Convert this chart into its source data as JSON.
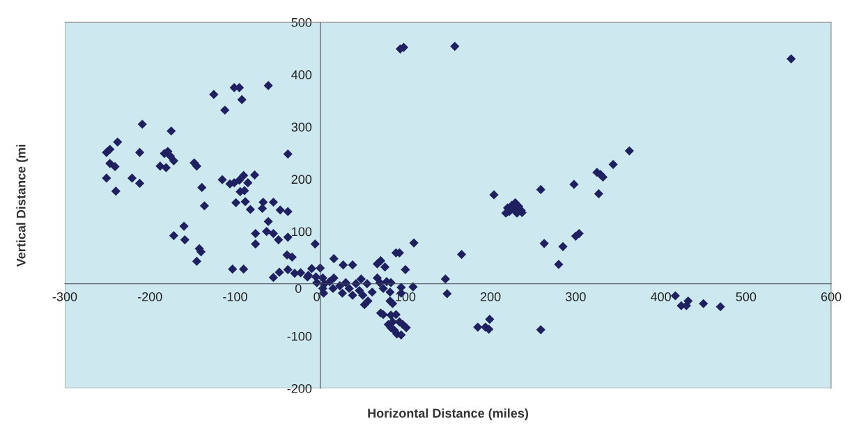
{
  "chart_data": {
    "type": "scatter",
    "xlabel": "Horizontal Distance (miles)",
    "ylabel": "Vertical Distance (mi",
    "xlim": [
      -300,
      600
    ],
    "ylim": [
      -200,
      500
    ],
    "xticks": [
      -300,
      -200,
      -100,
      0,
      100,
      200,
      300,
      400,
      500,
      600
    ],
    "yticks": [
      -200,
      -100,
      0,
      100,
      200,
      300,
      400,
      500
    ],
    "grid": false,
    "marker": "diamond",
    "series": [
      {
        "color": "#1f2060",
        "x": [
          -251,
          -251,
          -247,
          -238,
          -247,
          -241,
          -240,
          -209,
          -212,
          -221,
          -212,
          -175,
          -183,
          -179,
          -176,
          -172,
          -188,
          -181,
          -148,
          -145,
          -139,
          -136,
          -172,
          -160,
          -159,
          -142,
          -140,
          -145,
          -115,
          -106,
          -101,
          -95,
          -90,
          -85,
          -94,
          -89,
          -77,
          -99,
          -88,
          -82,
          -67,
          -68,
          -55,
          -47,
          -38,
          -38,
          -61,
          -76,
          -76,
          -63,
          -55,
          -49,
          -38,
          -6,
          -103,
          -90,
          -39,
          -33,
          -55,
          -48,
          -38,
          -30,
          -23,
          -14,
          -10,
          -125,
          -112,
          -101,
          -95,
          -92,
          -61,
          110,
          89,
          93,
          166,
          16,
          27,
          38,
          67,
          71,
          76,
          100,
          0,
          -15,
          -5,
          3,
          -4,
          5,
          3,
          4,
          11,
          16,
          15,
          23,
          26,
          30,
          34,
          38,
          42,
          48,
          46,
          50,
          55,
          56,
          52,
          61,
          67,
          70,
          74,
          78,
          83,
          82,
          82,
          85,
          95,
          95,
          109,
          147,
          149,
          71,
          74,
          83,
          89,
          80,
          85,
          83,
          87,
          90,
          95,
          97,
          101,
          93,
          185,
          194,
          198,
          199,
          94,
          98,
          158,
          553,
          363,
          344,
          204,
          259,
          298,
          325,
          329,
          332,
          327,
          218,
          220,
          222,
          225,
          227,
          229,
          231,
          233,
          236,
          237,
          263,
          285,
          280,
          300,
          304,
          417,
          424,
          430,
          432,
          450,
          470,
          259
        ],
        "values": [
          202,
          251,
          257,
          271,
          230,
          224,
          177,
          305,
          251,
          202,
          192,
          292,
          249,
          253,
          244,
          235,
          225,
          222,
          231,
          225,
          184,
          149,
          92,
          110,
          84,
          67,
          61,
          43,
          199,
          191,
          193,
          198,
          207,
          193,
          176,
          178,
          208,
          155,
          157,
          142,
          156,
          144,
          156,
          141,
          138,
          248,
          119,
          96,
          76,
          100,
          96,
          84,
          89,
          76,
          28,
          28,
          55,
          51,
          12,
          22,
          27,
          20,
          21,
          16,
          29,
          362,
          332,
          375,
          375,
          352,
          379,
          78,
          59,
          59,
          56,
          48,
          36,
          36,
          38,
          44,
          32,
          27,
          30,
          13,
          13,
          11,
          2,
          0,
          -9,
          -18,
          4,
          11,
          -9,
          -4,
          -18,
          2,
          -9,
          -22,
          0,
          9,
          -13,
          -22,
          0,
          -33,
          -40,
          -16,
          11,
          2,
          -9,
          4,
          2,
          -16,
          -33,
          -38,
          -7,
          -18,
          -6,
          9,
          -19,
          -56,
          -59,
          -60,
          -59,
          -78,
          -73,
          -84,
          -89,
          -96,
          -98,
          -78,
          -84,
          -73,
          -83,
          -83,
          -87,
          -68,
          449,
          452,
          454,
          430,
          254,
          228,
          170,
          180,
          190,
          213,
          209,
          204,
          172,
          135,
          145,
          138,
          150,
          142,
          155,
          135,
          148,
          140,
          136,
          77,
          71,
          37,
          91,
          96,
          -23,
          -42,
          -42,
          -33,
          -38,
          -44,
          -88
        ]
      }
    ]
  }
}
